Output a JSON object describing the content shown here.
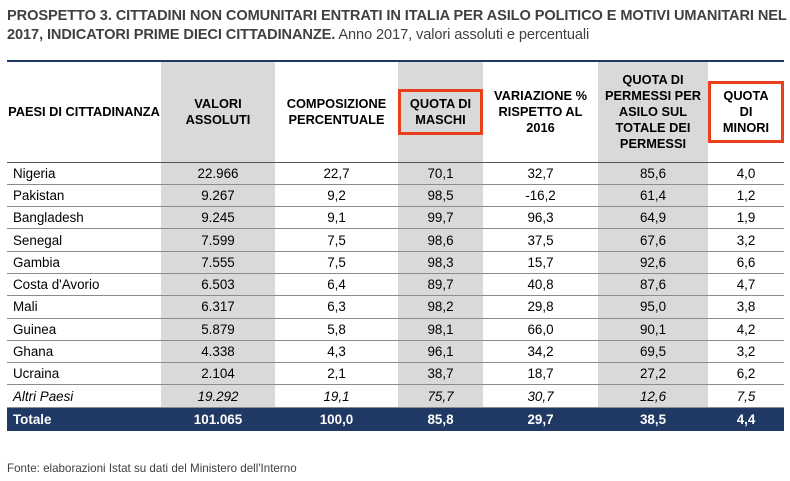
{
  "title": {
    "bold": "PROSPETTO 3. CITTADINI NON COMUNITARI ENTRATI IN ITALIA PER ASILO POLITICO E MOTIVI UMANITARI NEL 2017, INDICATORI PRIME DIECI CITTADINANZE.",
    "normal": " Anno 2017, valori assoluti e percentuali"
  },
  "headers": {
    "country": "PAESI DI CITTADINANZA",
    "valori": "VALORI ASSOLUTI",
    "composizione": "COMPOSIZIONE PERCENTUALE",
    "maschi": "QUOTA DI MASCHI",
    "variazione": "VARIAZIONE % RISPETTO AL 2016",
    "permessi": "QUOTA DI PERMESSI PER ASILO SUL TOTALE DEI PERMESSI",
    "minori": "QUOTA DI MINORI"
  },
  "highlight_color": "#e8401c",
  "total_bar_color": "#1f3864",
  "rows": [
    {
      "country": "Nigeria",
      "valori": "22.966",
      "composizione": "22,7",
      "maschi": "70,1",
      "variazione": "32,7",
      "permessi": "85,6",
      "minori": "4,0"
    },
    {
      "country": "Pakistan",
      "valori": "9.267",
      "composizione": "9,2",
      "maschi": "98,5",
      "variazione": "-16,2",
      "permessi": "61,4",
      "minori": "1,2"
    },
    {
      "country": "Bangladesh",
      "valori": "9.245",
      "composizione": "9,1",
      "maschi": "99,7",
      "variazione": "96,3",
      "permessi": "64,9",
      "minori": "1,9"
    },
    {
      "country": "Senegal",
      "valori": "7.599",
      "composizione": "7,5",
      "maschi": "98,6",
      "variazione": "37,5",
      "permessi": "67,6",
      "minori": "3,2"
    },
    {
      "country": "Gambia",
      "valori": "7.555",
      "composizione": "7,5",
      "maschi": "98,3",
      "variazione": "15,7",
      "permessi": "92,6",
      "minori": "6,6"
    },
    {
      "country": "Costa d'Avorio",
      "valori": "6.503",
      "composizione": "6,4",
      "maschi": "89,7",
      "variazione": "40,8",
      "permessi": "87,6",
      "minori": "4,7"
    },
    {
      "country": "Mali",
      "valori": "6.317",
      "composizione": "6,3",
      "maschi": "98,2",
      "variazione": "29,8",
      "permessi": "95,0",
      "minori": "3,8"
    },
    {
      "country": "Guinea",
      "valori": "5.879",
      "composizione": "5,8",
      "maschi": "98,1",
      "variazione": "66,0",
      "permessi": "90,1",
      "minori": "4,2"
    },
    {
      "country": "Ghana",
      "valori": "4.338",
      "composizione": "4,3",
      "maschi": "96,1",
      "variazione": "34,2",
      "permessi": "69,5",
      "minori": "3,2"
    },
    {
      "country": "Ucraina",
      "valori": "2.104",
      "composizione": "2,1",
      "maschi": "38,7",
      "variazione": "18,7",
      "permessi": "27,2",
      "minori": "6,2"
    }
  ],
  "altri": {
    "country": "Altri Paesi",
    "valori": "19.292",
    "composizione": "19,1",
    "maschi": "75,7",
    "variazione": "30,7",
    "permessi": "12,6",
    "minori": "7,5"
  },
  "totale": {
    "country": "Totale",
    "valori": "101.065",
    "composizione": "100,0",
    "maschi": "85,8",
    "variazione": "29,7",
    "permessi": "38,5",
    "minori": "4,4"
  },
  "source": "Fonte: elaborazioni Istat su dati del Ministero dell'Interno"
}
